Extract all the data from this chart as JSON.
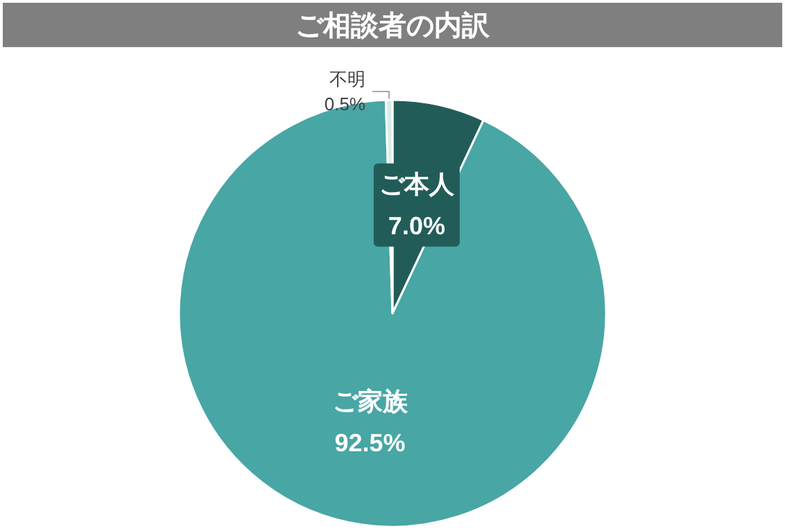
{
  "chart_data": {
    "type": "pie",
    "title": "ご相談者の内訳",
    "categories": [
      "ご本人",
      "ご家族",
      "不明"
    ],
    "values": [
      7.0,
      92.5,
      0.5
    ],
    "value_labels": [
      "7.0%",
      "92.5%",
      "0.5%"
    ],
    "colors": [
      "#225c58",
      "#48a6a4",
      "#d8ebea"
    ],
    "legend": false
  }
}
